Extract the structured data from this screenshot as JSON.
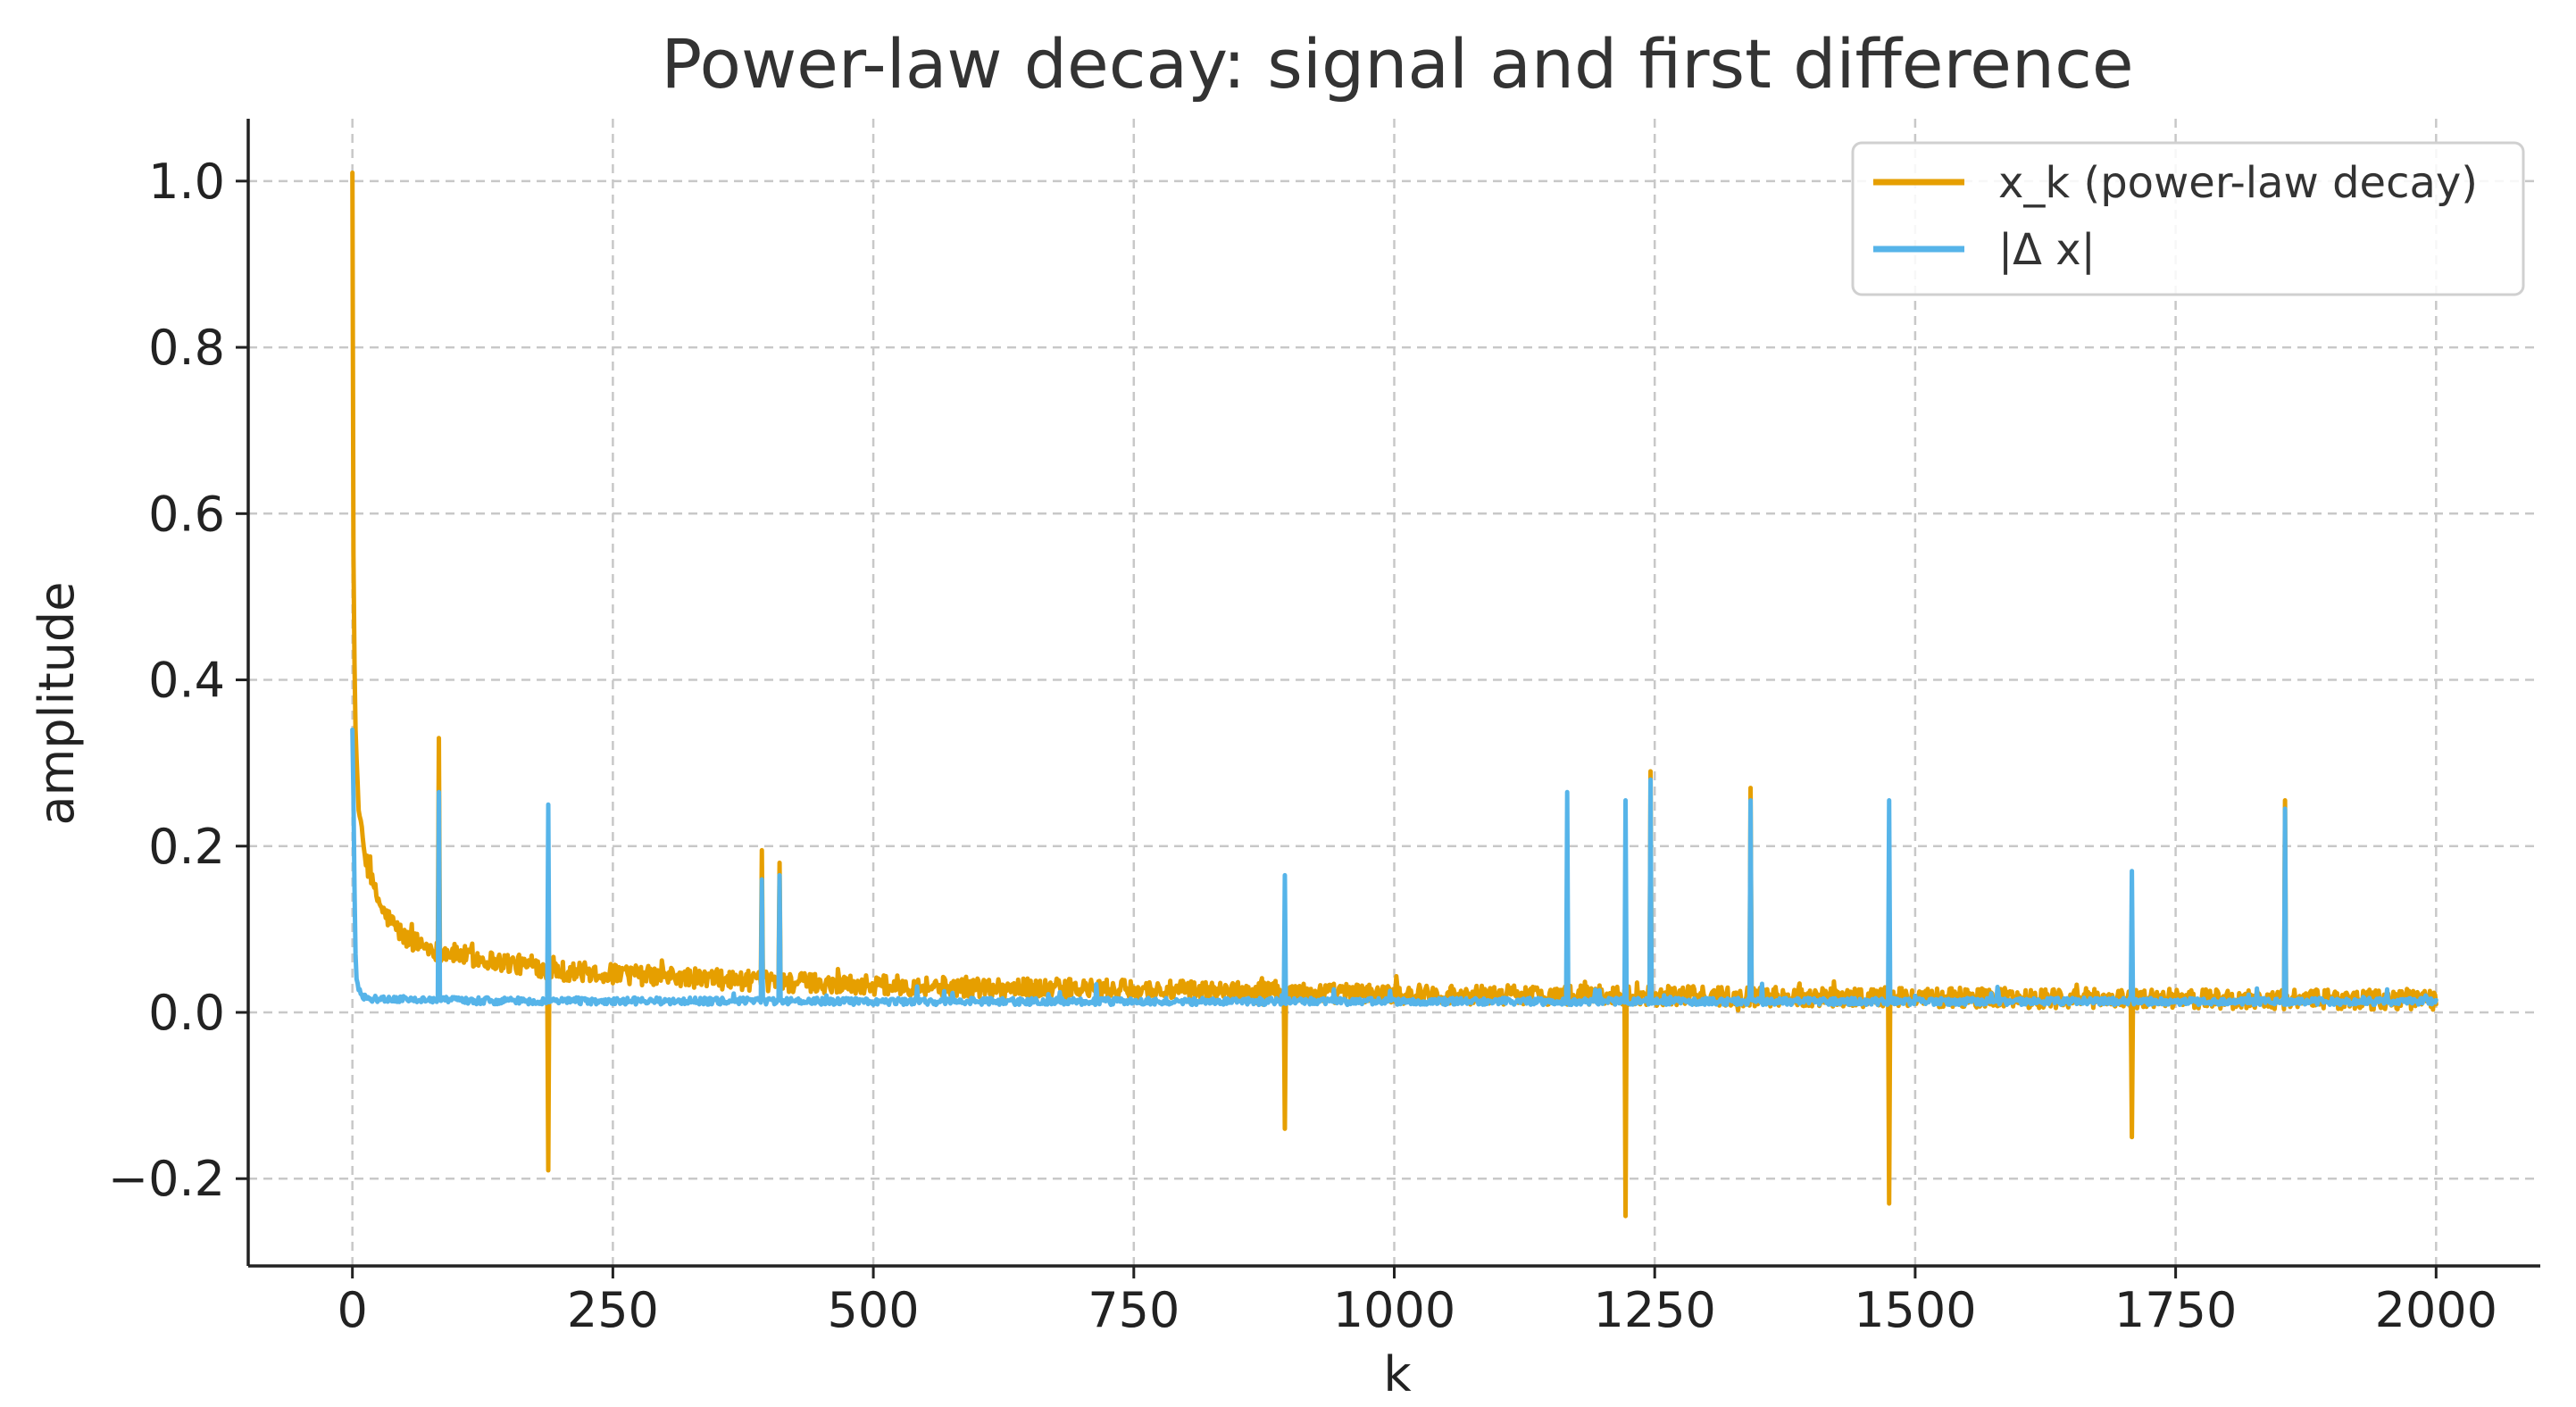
{
  "chart_data": {
    "type": "line",
    "title": "Power-law decay: signal and first difference",
    "xlabel": "k",
    "ylabel": "amplitude",
    "xlim": [
      -100,
      2100
    ],
    "ylim": [
      -0.305,
      1.075
    ],
    "x_ticks": [
      0,
      250,
      500,
      750,
      1000,
      1250,
      1500,
      1750,
      2000
    ],
    "x_tick_labels": [
      "0",
      "250",
      "500",
      "750",
      "1000",
      "1250",
      "1500",
      "1750",
      "2000"
    ],
    "y_ticks": [
      -0.2,
      0.0,
      0.2,
      0.4,
      0.6,
      0.8,
      1.0
    ],
    "y_tick_labels": [
      "−0.2",
      "0.0",
      "0.2",
      "0.4",
      "0.6",
      "0.8",
      "1.0"
    ],
    "grid": true,
    "legend_position": "top-right",
    "series": [
      {
        "name": "x_k (power-law decay)",
        "color": "#E69F00",
        "base_curve": {
          "x": [
            0,
            1,
            2,
            3,
            5,
            8,
            12,
            20,
            30,
            50,
            80,
            120,
            200,
            300,
            400,
            500,
            700,
            1000,
            1500,
            2000
          ],
          "y": [
            1.01,
            0.55,
            0.42,
            0.34,
            0.27,
            0.22,
            0.19,
            0.15,
            0.12,
            0.09,
            0.075,
            0.065,
            0.05,
            0.043,
            0.037,
            0.033,
            0.028,
            0.022,
            0.018,
            0.015
          ]
        },
        "spikes": [
          {
            "x": 83,
            "y": 0.33
          },
          {
            "x": 188,
            "y": -0.19
          },
          {
            "x": 393,
            "y": 0.195
          },
          {
            "x": 410,
            "y": 0.18
          },
          {
            "x": 895,
            "y": -0.14
          },
          {
            "x": 1222,
            "y": -0.245
          },
          {
            "x": 1246,
            "y": 0.29
          },
          {
            "x": 1342,
            "y": 0.27
          },
          {
            "x": 1475,
            "y": -0.23
          },
          {
            "x": 1708,
            "y": -0.15
          },
          {
            "x": 1855,
            "y": 0.255
          }
        ]
      },
      {
        "name": "|Δ x|",
        "color": "#56B4E9",
        "base_curve": {
          "x": [
            0,
            1,
            2,
            3,
            4,
            6,
            10,
            20,
            100,
            500,
            1000,
            1500,
            2000
          ],
          "y": [
            0.34,
            0.26,
            0.15,
            0.07,
            0.04,
            0.025,
            0.018,
            0.014,
            0.012,
            0.011,
            0.011,
            0.011,
            0.011
          ]
        },
        "spikes": [
          {
            "x": 83,
            "y": 0.265
          },
          {
            "x": 188,
            "y": 0.25
          },
          {
            "x": 393,
            "y": 0.16
          },
          {
            "x": 410,
            "y": 0.165
          },
          {
            "x": 895,
            "y": 0.165
          },
          {
            "x": 1166,
            "y": 0.265
          },
          {
            "x": 1222,
            "y": 0.255
          },
          {
            "x": 1246,
            "y": 0.28
          },
          {
            "x": 1342,
            "y": 0.255
          },
          {
            "x": 1475,
            "y": 0.255
          },
          {
            "x": 1708,
            "y": 0.17
          },
          {
            "x": 1855,
            "y": 0.245
          }
        ]
      }
    ]
  }
}
